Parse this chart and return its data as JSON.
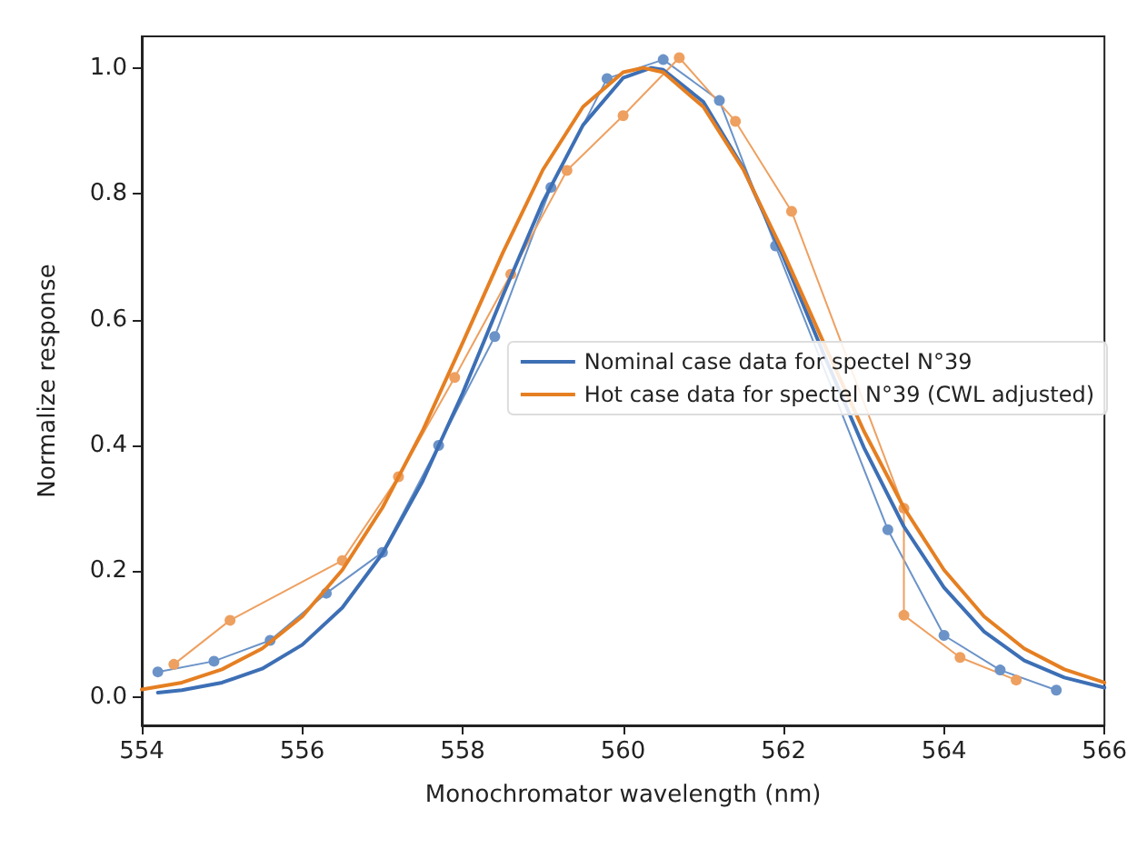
{
  "chart_data": {
    "type": "line",
    "xlabel": "Monochromator wavelength (nm)",
    "ylabel": "Normalize response",
    "xlim": [
      554,
      566
    ],
    "xticks": [
      554,
      556,
      558,
      560,
      562,
      564,
      566
    ],
    "ylim": [
      -0.045,
      1.05
    ],
    "yticks": [
      {
        "value": 0,
        "label": "0.0"
      },
      {
        "value": 0.2,
        "label": "0.2"
      },
      {
        "value": 0.4,
        "label": "0.4"
      },
      {
        "value": 0.6,
        "label": "0.6"
      },
      {
        "value": 0.8,
        "label": "0.8"
      },
      {
        "value": 1,
        "label": "1.0"
      }
    ],
    "grid": false,
    "legend": "right",
    "line_style": "solid",
    "series": [
      {
        "color": "#6b93c8",
        "marker": "circle",
        "x": [
          554.2,
          554.9,
          555.6,
          556.3,
          557.0,
          557.7,
          558.4,
          559.1,
          559.8,
          560.5,
          561.2,
          561.9,
          563.3,
          564.0,
          564.7,
          565.4
        ],
        "values": [
          0.04,
          0.057,
          0.09,
          0.165,
          0.23,
          0.4,
          0.573,
          0.81,
          0.983,
          1.013,
          0.948,
          0.717,
          0.266,
          0.098,
          0.043,
          0.011
        ]
      },
      {
        "color": "#eea060",
        "marker": "circle",
        "x": [
          554.4,
          555.1,
          556.5,
          557.2,
          557.9,
          558.6,
          559.3,
          560.0,
          560.7,
          561.4,
          562.1,
          563.5,
          563.5,
          564.2,
          564.9
        ],
        "values": [
          0.052,
          0.122,
          0.217,
          0.35,
          0.508,
          0.672,
          0.837,
          0.924,
          1.016,
          0.915,
          0.772,
          0.3,
          0.13,
          0.063,
          0.027
        ]
      },
      {
        "name": "Nominal case data for spectel N°39",
        "color": "#3d6fb5",
        "marker": "none",
        "x": [
          554.2,
          554.5,
          555,
          555.5,
          556,
          556.5,
          557,
          557.5,
          558,
          558.5,
          559,
          559.5,
          560,
          560.35,
          560.5,
          561,
          561.5,
          562,
          562.5,
          563,
          563.5,
          564,
          564.5,
          565,
          565.5,
          566
        ],
        "values": [
          0.007,
          0.011,
          0.023,
          0.045,
          0.083,
          0.142,
          0.228,
          0.343,
          0.483,
          0.638,
          0.787,
          0.909,
          0.984,
          1.0,
          0.997,
          0.946,
          0.84,
          0.699,
          0.545,
          0.397,
          0.271,
          0.174,
          0.104,
          0.058,
          0.031,
          0.015
        ]
      },
      {
        "name": "Hot case data for spectel N°39 (CWL adjusted)",
        "color": "#e57f22",
        "marker": "none",
        "x": [
          554,
          554.5,
          555,
          555.5,
          556,
          556.5,
          557,
          557.5,
          558,
          558.5,
          559,
          559.5,
          560,
          560.25,
          560.5,
          561,
          561.5,
          562,
          562.5,
          563,
          563.5,
          564,
          564.5,
          565,
          565.5,
          566
        ],
        "values": [
          0.012,
          0.023,
          0.044,
          0.077,
          0.128,
          0.202,
          0.301,
          0.423,
          0.563,
          0.706,
          0.838,
          0.938,
          0.993,
          1.0,
          0.993,
          0.938,
          0.838,
          0.706,
          0.563,
          0.423,
          0.301,
          0.202,
          0.128,
          0.077,
          0.044,
          0.023
        ]
      }
    ]
  }
}
